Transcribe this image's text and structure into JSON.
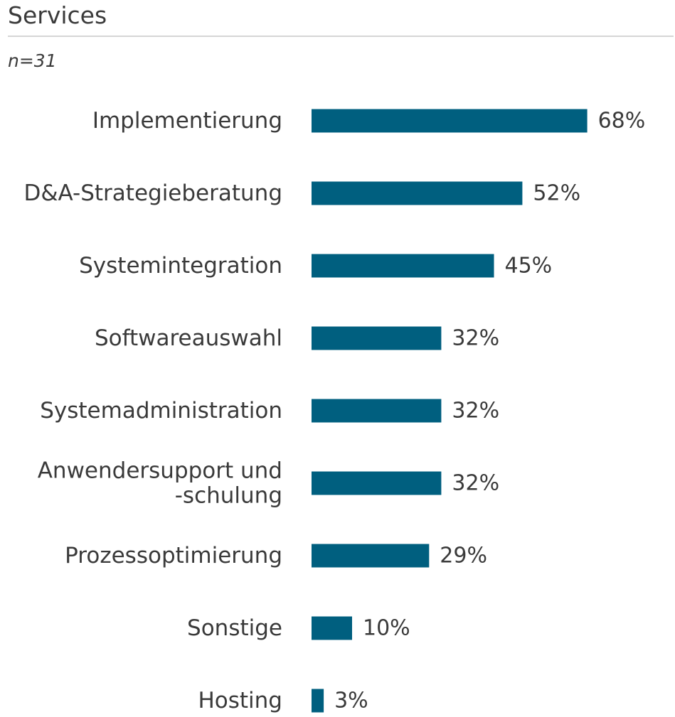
{
  "chart_data": {
    "type": "bar",
    "orientation": "horizontal",
    "title": "Services",
    "subtitle": "n=31",
    "categories": [
      [
        "Implementierung"
      ],
      [
        "D&A-Strategieberatung"
      ],
      [
        "Systemintegration"
      ],
      [
        "Softwareauswahl"
      ],
      [
        "Systemadministration"
      ],
      [
        "Anwendersupport und",
        "-schulung"
      ],
      [
        "Prozessoptimierung"
      ],
      [
        "Sonstige"
      ],
      [
        "Hosting"
      ]
    ],
    "values": [
      68,
      52,
      45,
      32,
      32,
      32,
      29,
      10,
      3
    ],
    "value_labels": [
      "68%",
      "52%",
      "45%",
      "32%",
      "32%",
      "32%",
      "29%",
      "10%",
      "3%"
    ],
    "unit": "%",
    "xlim": [
      0,
      100
    ],
    "grid": false,
    "legend": "none",
    "bar_color": "#005f7f"
  }
}
